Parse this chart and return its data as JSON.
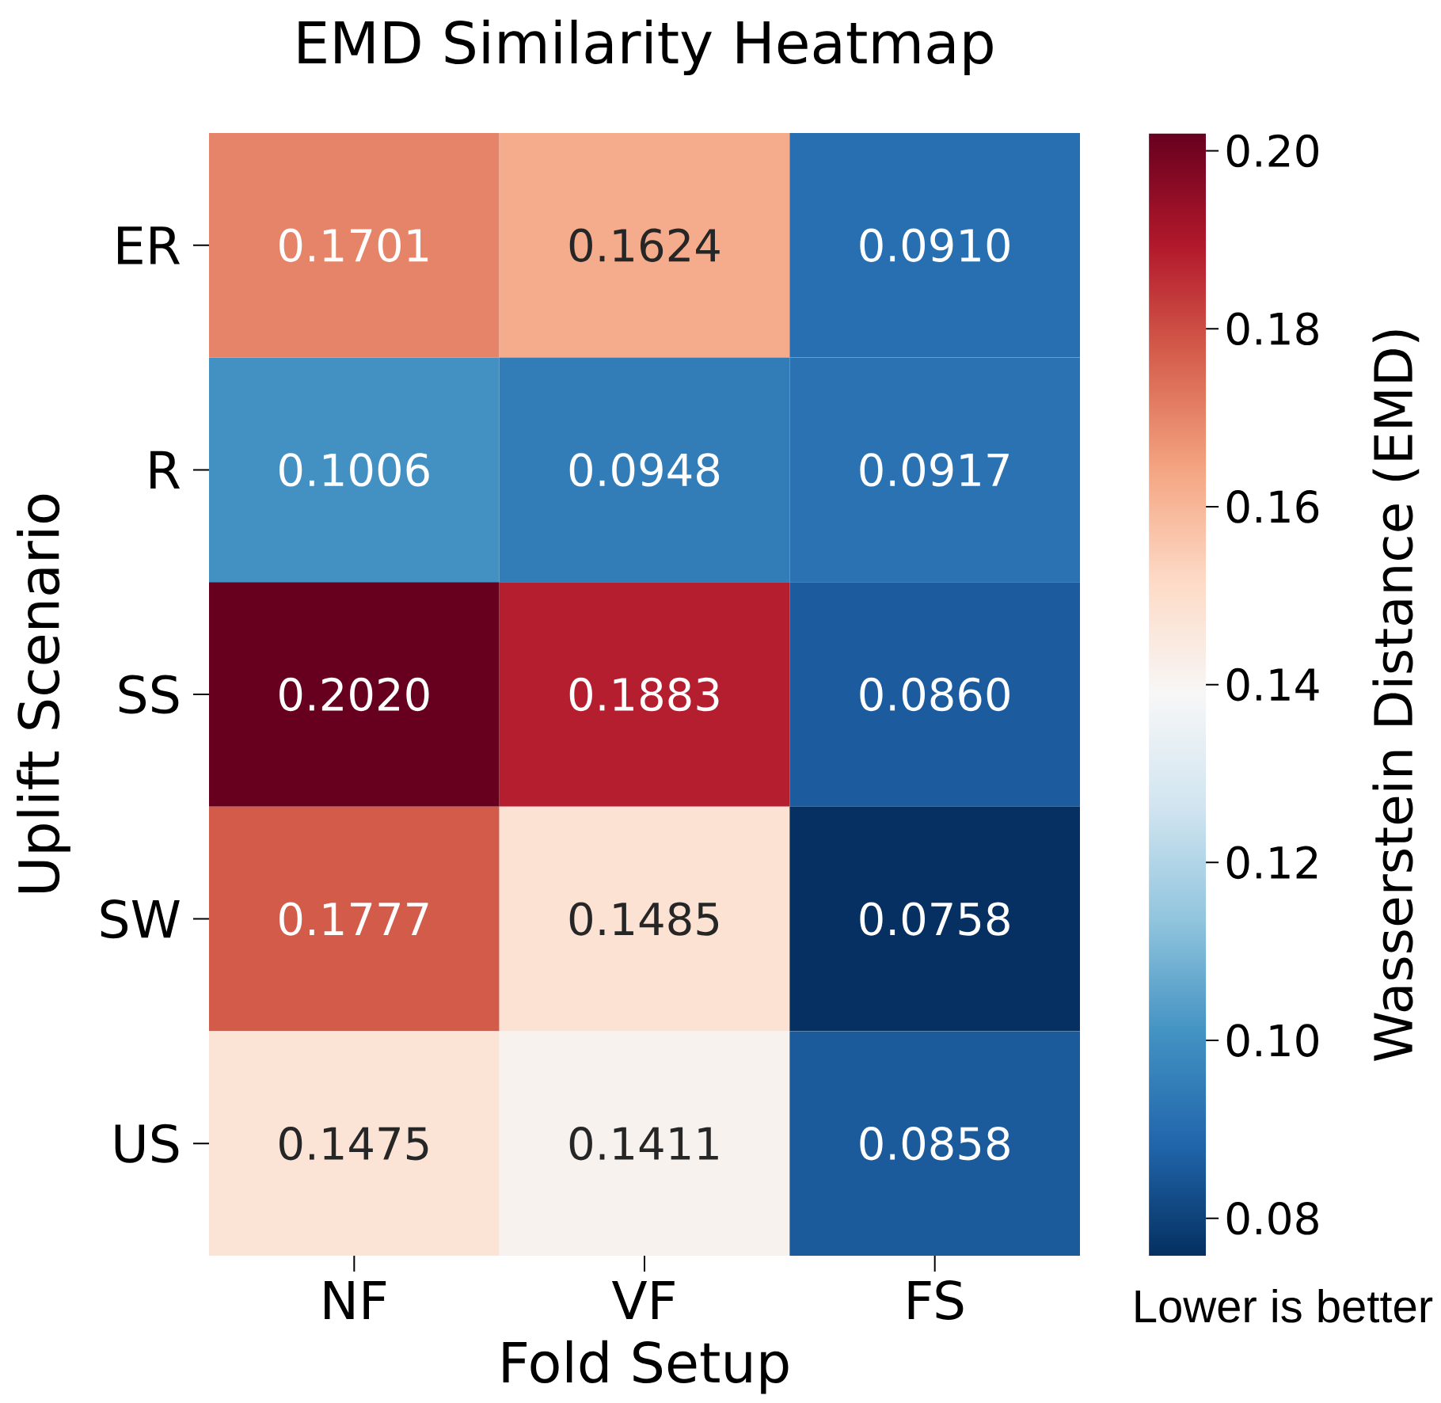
{
  "chart_data": {
    "type": "heatmap",
    "title": "EMD Similarity Heatmap",
    "xlabel": "Fold Setup",
    "ylabel": "Uplift Scenario",
    "clabel": "Wasserstein Distance (EMD)",
    "categories": [
      "NF",
      "VF",
      "FS"
    ],
    "y_categories": [
      "ER",
      "R",
      "SS",
      "SW",
      "US"
    ],
    "cells": [
      [
        0.1701,
        0.1624,
        0.091
      ],
      [
        0.1006,
        0.0948,
        0.0917
      ],
      [
        0.202,
        0.1883,
        0.086
      ],
      [
        0.1777,
        0.1485,
        0.0758
      ],
      [
        0.1475,
        0.1411,
        0.0858
      ]
    ],
    "cell_labels": [
      [
        "0.1701",
        "0.1624",
        "0.0910"
      ],
      [
        "0.1006",
        "0.0948",
        "0.0917"
      ],
      [
        "0.2020",
        "0.1883",
        "0.0860"
      ],
      [
        "0.1777",
        "0.1485",
        "0.0758"
      ],
      [
        "0.1475",
        "0.1411",
        "0.0858"
      ]
    ],
    "clim": [
      0.0758,
      0.202
    ],
    "cticks": [
      0.08,
      {
        "value": 0.1,
        "label": "0.10"
      },
      0.12,
      0.14,
      0.16,
      0.18,
      {
        "value": 0.2,
        "label": "0.20"
      }
    ],
    "annotations": [
      "Lower is better"
    ]
  }
}
